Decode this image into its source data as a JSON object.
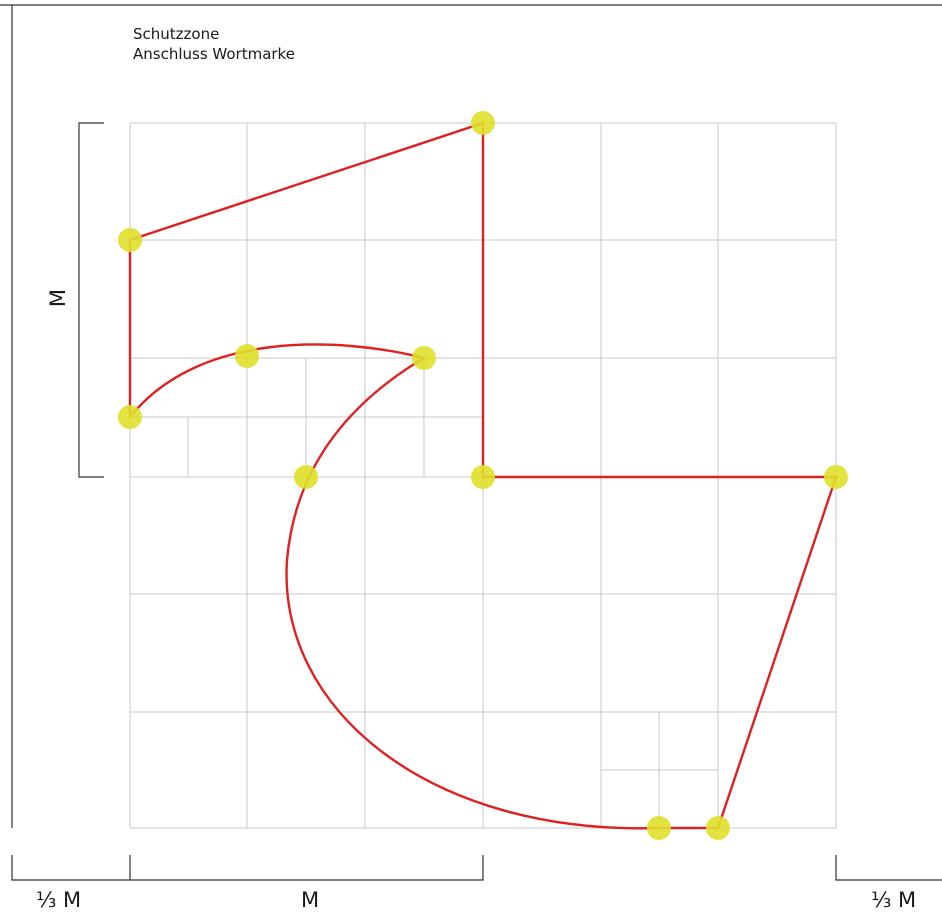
{
  "caption": {
    "line1": "Schutzzone",
    "line2": "Anschluss Wortmarke"
  },
  "dimensions": {
    "left_vertical": "M",
    "bottom_left": "⅓ M",
    "bottom_middle": "M",
    "bottom_right": "⅓ M"
  },
  "colors": {
    "grid": "#c8c8c8",
    "outline": "#e02020",
    "anchor_point": "#dfe02a",
    "frame": "#333333"
  }
}
